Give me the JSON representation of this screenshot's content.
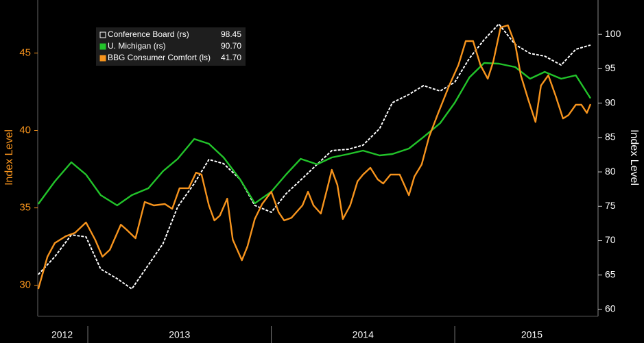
{
  "chart_data": {
    "type": "line",
    "y_label": "Index Level",
    "y2_label": "Index Level",
    "xlim": [
      2012.727,
      2015.781
    ],
    "xticks": [
      {
        "value": 2012.86,
        "label": "2012"
      },
      {
        "value": 2013.5,
        "label": "2013"
      },
      {
        "value": 2014.5,
        "label": "2014"
      },
      {
        "value": 2015.42,
        "label": "2015"
      }
    ],
    "xminor": [
      2013,
      2014,
      2015
    ],
    "ylim": [
      28,
      48.2
    ],
    "yticks": [
      30,
      35,
      40,
      45
    ],
    "y_color": "#f7941d",
    "y2lim": [
      59,
      104.5
    ],
    "y2ticks": [
      60,
      65,
      70,
      75,
      80,
      85,
      90,
      95,
      100
    ],
    "series": [
      {
        "name": "Conference Board (rs)",
        "legend_value": "98.45",
        "color": "#ffffff",
        "dashed": true,
        "axis": "y2",
        "x": [
          2012.73,
          2012.82,
          2012.91,
          2012.99,
          2013.07,
          2013.16,
          2013.24,
          2013.33,
          2013.41,
          2013.49,
          2013.58,
          2013.66,
          2013.74,
          2013.83,
          2013.91,
          2014.0,
          2014.08,
          2014.16,
          2014.25,
          2014.33,
          2014.42,
          2014.5,
          2014.59,
          2014.66,
          2014.75,
          2014.83,
          2014.92,
          2015.0,
          2015.08,
          2015.16,
          2015.24,
          2015.33,
          2015.41,
          2015.49,
          2015.58,
          2015.66,
          2015.74
        ],
        "values": [
          65.07,
          67.66,
          70.85,
          70.55,
          65.87,
          64.48,
          62.98,
          66.47,
          69.56,
          74.93,
          78.31,
          81.8,
          81.2,
          78.91,
          75.13,
          74.13,
          76.82,
          78.81,
          81.1,
          83.09,
          83.29,
          83.89,
          86.28,
          90.06,
          91.26,
          92.55,
          91.76,
          93.05,
          96.53,
          99.22,
          101.51,
          98.52,
          97.23,
          96.83,
          95.54,
          97.83,
          98.45
        ]
      },
      {
        "name": "U. Michigan (rs)",
        "legend_value": "90.70",
        "color": "#22c42a",
        "axis": "y2",
        "x": [
          2012.73,
          2012.82,
          2012.91,
          2012.99,
          2013.07,
          2013.16,
          2013.24,
          2013.33,
          2013.41,
          2013.49,
          2013.58,
          2013.66,
          2013.74,
          2013.83,
          2013.91,
          2014.0,
          2014.08,
          2014.16,
          2014.25,
          2014.33,
          2014.42,
          2014.5,
          2014.59,
          2014.66,
          2014.75,
          2014.83,
          2014.92,
          2015.0,
          2015.08,
          2015.16,
          2015.24,
          2015.33,
          2015.41,
          2015.49,
          2015.58,
          2015.66,
          2015.74
        ],
        "values": [
          75.33,
          78.61,
          81.4,
          79.61,
          76.62,
          75.13,
          76.62,
          77.62,
          80.11,
          81.9,
          84.79,
          84.09,
          82.1,
          78.91,
          75.43,
          77.12,
          79.61,
          81.9,
          81.1,
          82.1,
          82.6,
          83.09,
          82.4,
          82.6,
          83.39,
          85.08,
          87.08,
          90.06,
          93.75,
          95.84,
          95.74,
          95.24,
          93.55,
          94.54,
          93.55,
          94.05,
          90.7
        ]
      },
      {
        "name": "BBG Consumer Comfort (ls)",
        "legend_value": "41.70",
        "color": "#f7941d",
        "axis": "y",
        "x": [
          2012.73,
          2012.78,
          2012.82,
          2012.88,
          2012.93,
          2012.99,
          2013.04,
          2013.08,
          2013.12,
          2013.18,
          2013.21,
          2013.26,
          2013.31,
          2013.36,
          2013.42,
          2013.46,
          2013.5,
          2013.55,
          2013.59,
          2013.62,
          2013.66,
          2013.69,
          2013.72,
          2013.76,
          2013.79,
          2013.84,
          2013.87,
          2013.91,
          2013.95,
          2014.0,
          2014.04,
          2014.07,
          2014.11,
          2014.17,
          2014.2,
          2014.23,
          2014.27,
          2014.31,
          2014.33,
          2014.36,
          2014.39,
          2014.43,
          2014.47,
          2014.5,
          2014.54,
          2014.58,
          2014.61,
          2014.65,
          2014.7,
          2014.75,
          2014.78,
          2014.82,
          2014.86,
          2014.91,
          2014.97,
          2015.02,
          2015.06,
          2015.1,
          2015.14,
          2015.18,
          2015.21,
          2015.25,
          2015.29,
          2015.33,
          2015.36,
          2015.4,
          2015.44,
          2015.47,
          2015.51,
          2015.55,
          2015.59,
          2015.62,
          2015.66,
          2015.69,
          2015.72,
          2015.74
        ],
        "values": [
          29.77,
          31.85,
          32.73,
          33.17,
          33.39,
          34.06,
          32.95,
          31.85,
          32.29,
          33.92,
          33.61,
          33.04,
          35.38,
          35.16,
          35.25,
          34.94,
          36.27,
          36.27,
          37.28,
          37.15,
          35.16,
          34.19,
          34.5,
          35.6,
          32.95,
          31.62,
          32.51,
          34.28,
          35.25,
          36.04,
          34.72,
          34.19,
          34.36,
          35.16,
          36.04,
          35.16,
          34.63,
          36.49,
          37.46,
          36.49,
          34.28,
          35.16,
          36.71,
          37.15,
          37.59,
          36.84,
          36.57,
          37.15,
          37.15,
          35.82,
          37.02,
          37.81,
          39.58,
          41.13,
          42.9,
          44.22,
          45.77,
          45.77,
          44.22,
          43.34,
          44.44,
          46.65,
          46.79,
          45.55,
          43.56,
          42.01,
          40.55,
          42.9,
          43.56,
          42.23,
          40.77,
          40.99,
          41.66,
          41.66,
          41.13,
          41.7
        ]
      }
    ]
  }
}
